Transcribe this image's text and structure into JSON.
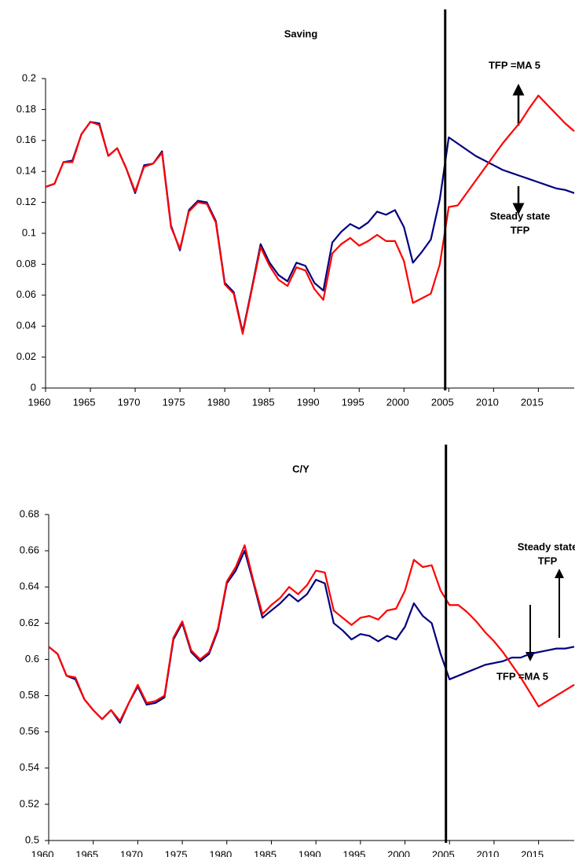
{
  "chart_data": [
    {
      "type": "line",
      "title": "Saving",
      "x": [
        1960,
        1961,
        1962,
        1963,
        1964,
        1965,
        1966,
        1967,
        1968,
        1969,
        1970,
        1971,
        1972,
        1973,
        1974,
        1975,
        1976,
        1977,
        1978,
        1979,
        1980,
        1981,
        1982,
        1983,
        1984,
        1985,
        1986,
        1987,
        1988,
        1989,
        1990,
        1991,
        1992,
        1993,
        1994,
        1995,
        1996,
        1997,
        1998,
        1999,
        2000,
        2001,
        2002,
        2003,
        2004,
        2005,
        2006,
        2007,
        2008,
        2009,
        2010,
        2011,
        2012,
        2013,
        2014,
        2015,
        2016,
        2017,
        2018,
        2019
      ],
      "xlim": [
        1960,
        2019
      ],
      "xticks": [
        1960,
        1965,
        1970,
        1975,
        1980,
        1985,
        1990,
        1995,
        2000,
        2005,
        2010,
        2015
      ],
      "ylim": [
        0,
        0.2
      ],
      "yticks": [
        0,
        0.02,
        0.04,
        0.06,
        0.08,
        0.1,
        0.12,
        0.14,
        0.16,
        0.18,
        0.2
      ],
      "vline": 2004.6,
      "series": [
        {
          "color": "#000080",
          "values": [
            0.13,
            0.132,
            0.146,
            0.147,
            0.164,
            0.172,
            0.171,
            0.15,
            0.155,
            0.142,
            0.126,
            0.144,
            0.145,
            0.153,
            0.105,
            0.089,
            0.115,
            0.121,
            0.12,
            0.108,
            0.068,
            0.062,
            0.036,
            0.064,
            0.093,
            0.081,
            0.073,
            0.069,
            0.081,
            0.079,
            0.068,
            0.063,
            0.094,
            0.101,
            0.106,
            0.103,
            0.107,
            0.114,
            0.112,
            0.115,
            0.104,
            0.081,
            0.088,
            0.096,
            0.122,
            0.162,
            0.158,
            0.154,
            0.15,
            0.147,
            0.144,
            0.141,
            0.139,
            0.137,
            0.135,
            0.133,
            0.131,
            0.129,
            0.128,
            0.126
          ]
        },
        {
          "color": "#ff0000",
          "values": [
            0.13,
            0.132,
            0.146,
            0.146,
            0.164,
            0.172,
            0.17,
            0.15,
            0.155,
            0.142,
            0.127,
            0.143,
            0.145,
            0.152,
            0.104,
            0.09,
            0.114,
            0.12,
            0.119,
            0.107,
            0.067,
            0.061,
            0.035,
            0.063,
            0.091,
            0.079,
            0.07,
            0.066,
            0.078,
            0.076,
            0.064,
            0.057,
            0.087,
            0.093,
            0.097,
            0.092,
            0.095,
            0.099,
            0.095,
            0.095,
            0.082,
            0.055,
            0.058,
            0.061,
            0.08,
            0.117,
            0.118,
            0.126,
            0.134,
            0.142,
            0.15,
            0.158,
            0.165,
            0.172,
            0.181,
            0.189,
            0.183,
            0.177,
            0.171,
            0.166
          ]
        }
      ],
      "annotations": [
        [
          "TFP =MA 5"
        ],
        [
          "Steady state",
          "TFP"
        ]
      ]
    },
    {
      "type": "line",
      "title": "C/Y",
      "x": [
        1960,
        1961,
        1962,
        1963,
        1964,
        1965,
        1966,
        1967,
        1968,
        1969,
        1970,
        1971,
        1972,
        1973,
        1974,
        1975,
        1976,
        1977,
        1978,
        1979,
        1980,
        1981,
        1982,
        1983,
        1984,
        1985,
        1986,
        1987,
        1988,
        1989,
        1990,
        1991,
        1992,
        1993,
        1994,
        1995,
        1996,
        1997,
        1998,
        1999,
        2000,
        2001,
        2002,
        2003,
        2004,
        2005,
        2006,
        2007,
        2008,
        2009,
        2010,
        2011,
        2012,
        2013,
        2014,
        2015,
        2016,
        2017,
        2018,
        2019
      ],
      "xlim": [
        1960,
        2019
      ],
      "xticks": [
        1960,
        1965,
        1970,
        1975,
        1980,
        1985,
        1990,
        1995,
        2000,
        2005,
        2010,
        2015
      ],
      "ylim": [
        0.5,
        0.68
      ],
      "yticks": [
        0.5,
        0.52,
        0.54,
        0.56,
        0.58,
        0.6,
        0.62,
        0.64,
        0.66,
        0.68
      ],
      "vline": 2004.6,
      "series": [
        {
          "color": "#000080",
          "values": [
            0.607,
            0.603,
            0.591,
            0.589,
            0.578,
            0.572,
            0.567,
            0.572,
            0.565,
            0.576,
            0.585,
            0.575,
            0.576,
            0.579,
            0.611,
            0.62,
            0.604,
            0.599,
            0.603,
            0.616,
            0.642,
            0.649,
            0.66,
            0.642,
            0.623,
            0.627,
            0.631,
            0.636,
            0.632,
            0.636,
            0.644,
            0.642,
            0.62,
            0.616,
            0.611,
            0.614,
            0.613,
            0.61,
            0.613,
            0.611,
            0.618,
            0.631,
            0.624,
            0.62,
            0.603,
            0.589,
            0.591,
            0.593,
            0.595,
            0.597,
            0.598,
            0.599,
            0.601,
            0.601,
            0.603,
            0.604,
            0.605,
            0.606,
            0.606,
            0.607
          ]
        },
        {
          "color": "#ff0000",
          "values": [
            0.607,
            0.603,
            0.591,
            0.59,
            0.578,
            0.572,
            0.567,
            0.572,
            0.566,
            0.576,
            0.586,
            0.576,
            0.577,
            0.58,
            0.612,
            0.621,
            0.605,
            0.6,
            0.604,
            0.617,
            0.643,
            0.651,
            0.663,
            0.643,
            0.625,
            0.63,
            0.634,
            0.64,
            0.636,
            0.641,
            0.649,
            0.648,
            0.627,
            0.623,
            0.619,
            0.623,
            0.624,
            0.622,
            0.627,
            0.628,
            0.638,
            0.655,
            0.651,
            0.652,
            0.638,
            0.63,
            0.63,
            0.626,
            0.621,
            0.615,
            0.61,
            0.604,
            0.597,
            0.59,
            0.582,
            0.574,
            0.577,
            0.58,
            0.583,
            0.586
          ]
        }
      ],
      "annotations": [
        [
          "Steady state",
          "TFP"
        ],
        [
          "TFP =MA 5"
        ]
      ]
    }
  ]
}
